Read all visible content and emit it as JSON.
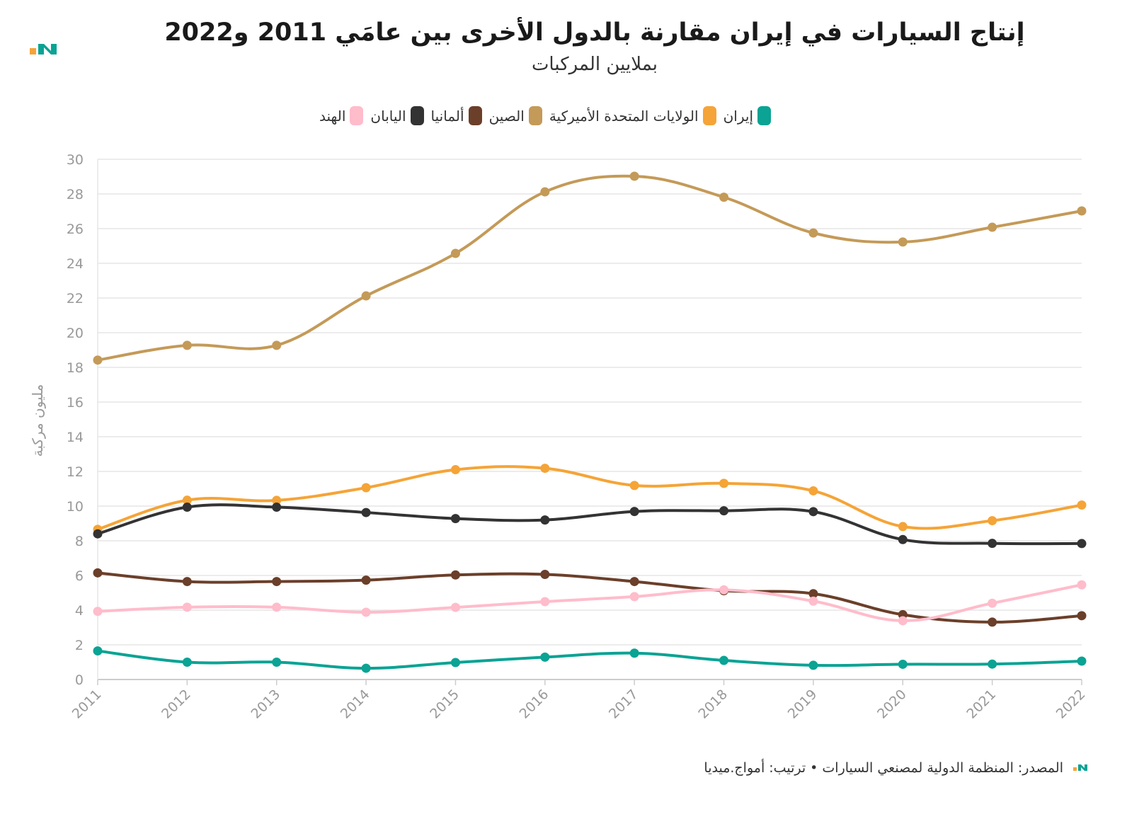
{
  "header": {
    "title": "إنتاج السيارات في إيران مقارنة بالدول الأخرى بين عامَي 2011 و2022",
    "subtitle": "بملايين المركبات"
  },
  "footer": {
    "source": "المصدر: المنظمة الدولية لمصنعي السيارات • ترتيب: أمواج.ميديا"
  },
  "colors": {
    "grid": "#e6e6e6",
    "axis_text": "#999999"
  },
  "chart_data": {
    "type": "line",
    "title": "إنتاج السيارات في إيران مقارنة بالدول الأخرى بين عامَي 2011 و2022",
    "subtitle": "بملايين المركبات",
    "xlabel": "",
    "ylabel": "مليون مركبة",
    "x": [
      "2011",
      "2012",
      "2013",
      "2014",
      "2015",
      "2016",
      "2017",
      "2018",
      "2019",
      "2020",
      "2021",
      "2022"
    ],
    "ylim": [
      0,
      30
    ],
    "yticks": [
      0,
      2,
      4,
      6,
      8,
      10,
      12,
      14,
      16,
      18,
      20,
      22,
      24,
      26,
      28,
      30
    ],
    "legend_position": "top-center",
    "series": [
      {
        "name": "إيران",
        "color": "#0aa394",
        "values": [
          1.65,
          1.0,
          1.0,
          0.65,
          0.98,
          1.29,
          1.52,
          1.1,
          0.82,
          0.88,
          0.89,
          1.06
        ]
      },
      {
        "name": "الولايات المتحدة الأميركية",
        "color": "#f5a437",
        "values": [
          8.66,
          10.34,
          10.33,
          11.06,
          12.1,
          12.18,
          11.19,
          11.31,
          10.88,
          8.82,
          9.16,
          10.06
        ]
      },
      {
        "name": "الصين",
        "color": "#c49a58",
        "values": [
          18.42,
          19.27,
          19.27,
          22.12,
          24.57,
          28.12,
          29.02,
          27.81,
          25.75,
          25.23,
          26.08,
          27.02
        ]
      },
      {
        "name": "ألمانيا",
        "color": "#6b3f2a",
        "values": [
          6.15,
          5.65,
          5.65,
          5.73,
          6.03,
          6.06,
          5.65,
          5.12,
          4.95,
          3.74,
          3.31,
          3.68
        ]
      },
      {
        "name": "اليابان",
        "color": "#333333",
        "values": [
          8.4,
          9.94,
          9.94,
          9.63,
          9.28,
          9.2,
          9.69,
          9.73,
          9.68,
          8.07,
          7.85,
          7.84
        ]
      },
      {
        "name": "الهند",
        "color": "#ffbccb",
        "values": [
          3.93,
          4.17,
          4.17,
          3.88,
          4.16,
          4.49,
          4.78,
          5.17,
          4.52,
          3.39,
          4.4,
          5.46
        ]
      }
    ]
  }
}
